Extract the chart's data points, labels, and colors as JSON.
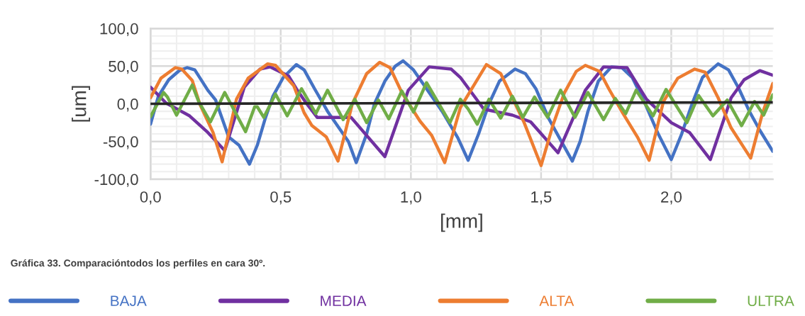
{
  "chart_data": {
    "type": "line",
    "xlabel": "[mm]",
    "ylabel": "[um]",
    "xlim": [
      0,
      2.39
    ],
    "ylim": [
      -100,
      100
    ],
    "xticks": [
      {
        "value": 0,
        "label": "0,0"
      },
      {
        "value": 0.1,
        "label": null
      },
      {
        "value": 0.2,
        "label": null
      },
      {
        "value": 0.3,
        "label": null
      },
      {
        "value": 0.4,
        "label": null
      },
      {
        "value": 0.5,
        "label": "0,5"
      },
      {
        "value": 0.6,
        "label": null
      },
      {
        "value": 0.7,
        "label": null
      },
      {
        "value": 0.8,
        "label": null
      },
      {
        "value": 0.9,
        "label": null
      },
      {
        "value": 1.0,
        "label": "1,0"
      },
      {
        "value": 1.1,
        "label": null
      },
      {
        "value": 1.2,
        "label": null
      },
      {
        "value": 1.3,
        "label": null
      },
      {
        "value": 1.4,
        "label": null
      },
      {
        "value": 1.5,
        "label": "1,5"
      },
      {
        "value": 1.6,
        "label": null
      },
      {
        "value": 1.7,
        "label": null
      },
      {
        "value": 1.8,
        "label": null
      },
      {
        "value": 1.9,
        "label": null
      },
      {
        "value": 2.0,
        "label": "2,0"
      },
      {
        "value": 2.1,
        "label": null
      },
      {
        "value": 2.2,
        "label": null
      },
      {
        "value": 2.3,
        "label": null
      }
    ],
    "yticks": [
      {
        "value": -100,
        "label": "-100,0"
      },
      {
        "value": -90,
        "label": null
      },
      {
        "value": -80,
        "label": null
      },
      {
        "value": -70,
        "label": null
      },
      {
        "value": -60,
        "label": null
      },
      {
        "value": -50,
        "label": "-50,0"
      },
      {
        "value": -40,
        "label": null
      },
      {
        "value": -30,
        "label": null
      },
      {
        "value": -20,
        "label": null
      },
      {
        "value": -10,
        "label": null
      },
      {
        "value": 0,
        "label": "0,0"
      },
      {
        "value": 10,
        "label": null
      },
      {
        "value": 20,
        "label": null
      },
      {
        "value": 30,
        "label": null
      },
      {
        "value": 40,
        "label": null
      },
      {
        "value": 50,
        "label": "50,0"
      },
      {
        "value": 60,
        "label": null
      },
      {
        "value": 70,
        "label": null
      },
      {
        "value": 80,
        "label": null
      },
      {
        "value": 90,
        "label": null
      },
      {
        "value": 100,
        "label": "100,0"
      }
    ],
    "grid": true,
    "legend": "bottom",
    "marker": "none",
    "line_style": "solid",
    "annotations": [
      "Gráfica 33. Comparacióntodos los perfiles en cara 30º."
    ],
    "series": [
      {
        "name": "BAJA",
        "color": "#4472c4",
        "x": [
          0,
          0.03,
          0.07,
          0.11,
          0.14,
          0.17,
          0.22,
          0.25,
          0.3,
          0.34,
          0.38,
          0.41,
          0.44,
          0.47,
          0.51,
          0.56,
          0.59,
          0.63,
          0.68,
          0.72,
          0.76,
          0.79,
          0.83,
          0.86,
          0.9,
          0.94,
          0.97,
          1.01,
          1.06,
          1.12,
          1.18,
          1.22,
          1.26,
          1.3,
          1.34,
          1.4,
          1.44,
          1.48,
          1.53,
          1.57,
          1.62,
          1.65,
          1.68,
          1.72,
          1.77,
          1.81,
          1.85,
          1.9,
          1.95,
          2.0,
          2.04,
          2.08,
          2.12,
          2.18,
          2.22,
          2.26,
          2.3,
          2.34,
          2.39
        ],
        "values": [
          -27,
          10,
          32,
          44,
          48,
          45,
          18,
          5,
          -44,
          -55,
          -80,
          -55,
          -20,
          10,
          35,
          52,
          45,
          20,
          -10,
          -30,
          -50,
          -78,
          -40,
          0,
          30,
          50,
          57,
          45,
          20,
          -10,
          -45,
          -75,
          -40,
          0,
          30,
          46,
          40,
          20,
          -20,
          -45,
          -76,
          -50,
          -10,
          30,
          49,
          48,
          35,
          0,
          -40,
          -74,
          -40,
          0,
          35,
          53,
          45,
          20,
          -10,
          -35,
          -63
        ]
      },
      {
        "name": "MEDIA",
        "color": "#7030a0",
        "x": [
          0,
          0.06,
          0.15,
          0.22,
          0.285,
          0.36,
          0.42,
          0.46,
          0.53,
          0.56,
          0.6,
          0.64,
          0.77,
          0.9,
          0.99,
          1.07,
          1.155,
          1.19,
          1.28,
          1.39,
          1.46,
          1.565,
          1.67,
          1.74,
          1.83,
          1.905,
          2.0,
          2.07,
          2.15,
          2.23,
          2.28,
          2.34,
          2.39
        ],
        "values": [
          22,
          1,
          -16,
          -38,
          -62,
          22,
          46,
          49,
          37,
          20,
          0,
          -18,
          -18,
          -70,
          18,
          49,
          46,
          35,
          -7,
          -15,
          -24,
          -65,
          18,
          49,
          48,
          6,
          -25,
          -38,
          -74,
          8,
          32,
          44,
          38
        ]
      },
      {
        "name": "ALTA",
        "color": "#ed7d31",
        "x": [
          0,
          0.04,
          0.095,
          0.12,
          0.16,
          0.19,
          0.24,
          0.275,
          0.33,
          0.375,
          0.45,
          0.48,
          0.55,
          0.59,
          0.62,
          0.675,
          0.72,
          0.775,
          0.83,
          0.88,
          0.92,
          0.965,
          1.035,
          1.08,
          1.13,
          1.19,
          1.29,
          1.345,
          1.38,
          1.435,
          1.5,
          1.545,
          1.59,
          1.635,
          1.67,
          1.725,
          1.76,
          1.815,
          1.87,
          1.915,
          1.97,
          2.025,
          2.09,
          2.13,
          2.18,
          2.23,
          2.305,
          2.35,
          2.39
        ],
        "values": [
          8,
          34,
          48,
          46,
          31,
          -1,
          -38,
          -77,
          6,
          34,
          53,
          51,
          24,
          -12,
          -29,
          -44,
          -76,
          0,
          40,
          55,
          48,
          15,
          -23,
          -42,
          -78,
          -5,
          52,
          40,
          15,
          -25,
          -82,
          -29,
          15,
          43,
          51,
          43,
          20,
          -13,
          -44,
          -75,
          3,
          34,
          46,
          42,
          8,
          -32,
          -72,
          -13,
          27
        ]
      },
      {
        "name": "ULTRA",
        "color": "#70ad47",
        "x": [
          0,
          0.05,
          0.065,
          0.1,
          0.16,
          0.185,
          0.23,
          0.285,
          0.365,
          0.4,
          0.41,
          0.435,
          0.48,
          0.525,
          0.58,
          0.635,
          0.68,
          0.74,
          0.785,
          0.83,
          0.875,
          0.915,
          0.965,
          1.01,
          1.06,
          1.15,
          1.19,
          1.22,
          1.255,
          1.3,
          1.345,
          1.39,
          1.43,
          1.475,
          1.525,
          1.575,
          1.63,
          1.68,
          1.74,
          1.785,
          1.825,
          1.865,
          1.93,
          1.98,
          2.06,
          2.105,
          2.16,
          2.215,
          2.27,
          2.32,
          2.355,
          2.39
        ],
        "values": [
          -17,
          15,
          9,
          -15,
          25,
          3,
          -24,
          15,
          -37,
          -4,
          -4,
          -18,
          13,
          -16,
          20,
          -13,
          18,
          -21,
          6,
          -25,
          5,
          -20,
          17,
          -11,
          28,
          -25,
          6,
          -7,
          -27,
          6,
          -19,
          10,
          -18,
          9,
          -18,
          18,
          -18,
          15,
          -21,
          7,
          -13,
          18,
          -16,
          19,
          -25,
          11,
          -16,
          5,
          -29,
          3,
          -15,
          12
        ]
      },
      {
        "color": "#262626",
        "x": [
          0,
          2.39
        ],
        "values": [
          0,
          2
        ]
      }
    ]
  }
}
